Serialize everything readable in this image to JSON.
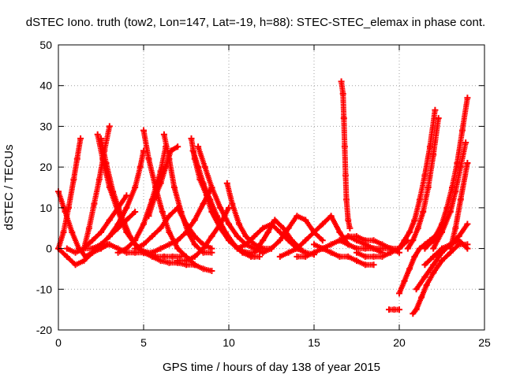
{
  "chart_data": {
    "type": "scatter",
    "title": "dSTEC Iono. truth (tow2, Lon=147, Lat=-19, h=88): STEC-STEC_elemax in phase cont.",
    "xlabel": "GPS time / hours of day 138 of year 2015",
    "ylabel": "dSTEC  / TECUs",
    "xlim": [
      0,
      25
    ],
    "ylim": [
      -20,
      50
    ],
    "xticks": [
      0,
      5,
      10,
      15,
      20,
      25
    ],
    "yticks": [
      -20,
      -10,
      0,
      10,
      20,
      30,
      40,
      50
    ],
    "grid": true,
    "marker": "+",
    "color": "#ff0000",
    "series": [
      {
        "x": [
          0.0,
          0.4,
          0.8,
          1.2,
          1.6,
          2.0,
          2.5,
          2.9
        ],
        "y": [
          14.0,
          9.0,
          4.0,
          0.0,
          -2.0,
          -1.0,
          0.0,
          1.0
        ]
      },
      {
        "x": [
          0.0,
          0.3,
          0.6,
          0.9,
          1.1,
          1.3
        ],
        "y": [
          0.0,
          4.0,
          10.0,
          17.0,
          22.0,
          27.0
        ]
      },
      {
        "x": [
          0.0,
          0.5,
          1.0,
          1.5,
          2.0,
          2.5,
          3.0,
          3.5,
          4.0,
          4.5
        ],
        "y": [
          0.0,
          -2.0,
          -4.0,
          -3.0,
          -1.0,
          1.0,
          3.0,
          5.0,
          7.0,
          9.0
        ]
      },
      {
        "x": [
          0.5,
          1.0,
          1.5,
          2.0,
          2.5,
          3.0,
          3.5,
          4.0
        ],
        "y": [
          0.0,
          -1.0,
          0.0,
          2.0,
          4.0,
          7.0,
          10.0,
          13.0
        ]
      },
      {
        "x": [
          2.3,
          2.6,
          3.0,
          3.5,
          4.0,
          4.5,
          5.0,
          5.5,
          6.0,
          6.5,
          7.0,
          7.5,
          8.0
        ],
        "y": [
          28.0,
          22.0,
          15.0,
          9.0,
          4.0,
          1.0,
          -1.0,
          -2.0,
          -3.0,
          -3.5,
          -3.5,
          -4.0,
          -4.0
        ]
      },
      {
        "x": [
          2.5,
          2.8,
          3.2,
          3.7,
          4.2,
          4.7,
          5.2,
          5.7,
          6.2,
          6.7,
          7.2
        ],
        "y": [
          27.0,
          21.0,
          14.0,
          8.0,
          3.0,
          0.0,
          -1.0,
          -2.0,
          -2.0,
          -2.0,
          -2.0
        ]
      },
      {
        "x": [
          1.5,
          1.8,
          2.1,
          2.4,
          2.7,
          3.0
        ],
        "y": [
          0.0,
          5.0,
          11.0,
          17.0,
          24.0,
          30.0
        ]
      },
      {
        "x": [
          1.5,
          2.0,
          2.5,
          3.0,
          3.5,
          4.0,
          4.5,
          5.0
        ],
        "y": [
          0.0,
          0.0,
          1.0,
          1.0,
          0.0,
          -1.0,
          -1.0,
          -1.0
        ]
      },
      {
        "x": [
          3.0,
          3.5,
          4.0,
          4.5,
          4.8,
          5.0
        ],
        "y": [
          3.0,
          6.0,
          10.0,
          15.0,
          20.0,
          24.0
        ]
      },
      {
        "x": [
          5.0,
          5.3,
          5.7,
          6.1,
          6.5,
          7.0,
          7.5,
          8.0,
          8.5,
          9.0
        ],
        "y": [
          29.0,
          22.0,
          15.0,
          9.0,
          4.0,
          0.0,
          -2.0,
          -4.0,
          -5.0,
          -5.5
        ]
      },
      {
        "x": [
          3.5,
          4.0,
          4.5,
          5.0,
          5.5,
          6.0,
          6.3
        ],
        "y": [
          -1.0,
          0.0,
          2.0,
          6.0,
          12.0,
          19.0,
          25.0
        ]
      },
      {
        "x": [
          4.5,
          5.0,
          5.5,
          6.0,
          6.5,
          7.0,
          7.5,
          8.0,
          8.5,
          9.0
        ],
        "y": [
          0.0,
          1.0,
          3.0,
          5.0,
          8.0,
          10.0,
          6.0,
          3.0,
          1.0,
          0.0
        ]
      },
      {
        "x": [
          6.2,
          6.5,
          6.8,
          7.2,
          7.6,
          8.0,
          8.5,
          9.0
        ],
        "y": [
          28.0,
          22.0,
          15.0,
          9.0,
          4.0,
          1.0,
          -1.0,
          -1.0
        ]
      },
      {
        "x": [
          5.3,
          5.6,
          6.0,
          6.3,
          6.6,
          7.0
        ],
        "y": [
          8.0,
          12.0,
          16.0,
          20.0,
          24.0,
          25.0
        ]
      },
      {
        "x": [
          5.0,
          5.5,
          6.0,
          6.5,
          7.0,
          7.5,
          8.0,
          8.5,
          9.0
        ],
        "y": [
          -1.0,
          -1.0,
          0.0,
          1.0,
          2.0,
          4.0,
          7.0,
          11.0,
          15.0
        ]
      },
      {
        "x": [
          7.8,
          8.0,
          8.3,
          8.7,
          9.0,
          9.5,
          10.0,
          10.5,
          11.0,
          11.5
        ],
        "y": [
          27.0,
          22.0,
          17.0,
          13.0,
          9.0,
          5.0,
          2.0,
          0.0,
          -1.0,
          -2.0
        ]
      },
      {
        "x": [
          7.9,
          8.2,
          8.5,
          8.9,
          9.3,
          9.8,
          10.3,
          10.8,
          11.3,
          11.8
        ],
        "y": [
          24.0,
          20.0,
          16.0,
          12.0,
          8.0,
          4.0,
          1.0,
          -1.0,
          -2.0,
          -2.0
        ]
      },
      {
        "x": [
          8.2,
          8.6,
          9.0,
          9.5,
          10.0,
          10.5,
          11.0,
          11.5,
          12.0
        ],
        "y": [
          25.0,
          20.0,
          15.0,
          10.0,
          6.0,
          3.0,
          1.0,
          0.0,
          -1.0
        ]
      },
      {
        "x": [
          7.0,
          7.5,
          8.0,
          8.5,
          9.0,
          9.5,
          10.0
        ],
        "y": [
          -3.0,
          -3.0,
          -2.0,
          0.0,
          3.0,
          6.0,
          10.0
        ]
      },
      {
        "x": [
          9.9,
          10.2,
          10.6,
          11.0,
          11.5,
          12.0,
          12.5
        ],
        "y": [
          16.0,
          11.0,
          6.0,
          3.0,
          1.0,
          0.0,
          0.0
        ]
      },
      {
        "x": [
          10.5,
          11.0,
          11.5,
          12.0,
          12.5,
          13.0,
          13.5,
          14.0,
          14.5,
          15.0
        ],
        "y": [
          0.0,
          1.0,
          3.0,
          5.0,
          6.0,
          4.0,
          2.0,
          0.0,
          -1.0,
          -1.5
        ]
      },
      {
        "x": [
          11.0,
          11.5,
          12.0,
          12.3,
          12.7,
          13.2,
          13.7,
          14.2
        ],
        "y": [
          -1.0,
          -1.0,
          2.0,
          4.0,
          7.0,
          5.0,
          2.0,
          0.0
        ]
      },
      {
        "x": [
          12.0,
          12.5,
          13.0,
          13.5,
          14.0,
          14.5,
          15.0,
          15.5
        ],
        "y": [
          -1.0,
          0.0,
          2.0,
          5.0,
          8.0,
          7.0,
          4.0,
          2.0
        ]
      },
      {
        "x": [
          13.0,
          13.5,
          14.0,
          14.5,
          15.0,
          15.5,
          16.0,
          16.5,
          17.0
        ],
        "y": [
          -2.0,
          -1.0,
          0.0,
          2.0,
          4.0,
          6.0,
          8.0,
          4.0,
          1.0
        ]
      },
      {
        "x": [
          14.0,
          14.5,
          15.0,
          15.5,
          16.0,
          16.5,
          17.0,
          17.5,
          18.0,
          18.5,
          19.0
        ],
        "y": [
          -2.0,
          -2.0,
          -1.0,
          0.0,
          1.0,
          2.0,
          3.0,
          2.0,
          1.0,
          0.0,
          -1.0
        ]
      },
      {
        "x": [
          15.0,
          15.5,
          16.0,
          16.5,
          17.0,
          17.5,
          18.0,
          18.5
        ],
        "y": [
          1.0,
          0.0,
          -1.0,
          -2.0,
          -2.0,
          -3.0,
          -4.0,
          -4.0
        ]
      },
      {
        "x": [
          16.6,
          16.7,
          16.75,
          16.8,
          16.85,
          16.9,
          17.0,
          17.1
        ],
        "y": [
          41.0,
          38.0,
          32.0,
          25.0,
          18.0,
          12.0,
          7.0,
          5.0
        ]
      },
      {
        "x": [
          16.5,
          17.0,
          17.5,
          18.0,
          18.5,
          19.0,
          19.5,
          20.0
        ],
        "y": [
          2.0,
          1.0,
          0.0,
          0.0,
          0.0,
          0.0,
          0.0,
          0.0
        ]
      },
      {
        "x": [
          17.0,
          17.5,
          18.0,
          18.5,
          19.0,
          19.5,
          20.0
        ],
        "y": [
          3.0,
          3.0,
          2.0,
          2.0,
          1.0,
          0.0,
          -1.0
        ]
      },
      {
        "x": [
          17.5,
          18.0,
          18.5,
          19.0,
          19.5,
          20.0,
          20.5
        ],
        "y": [
          -1.0,
          -2.0,
          -2.0,
          -2.0,
          -1.0,
          0.0,
          2.0
        ]
      },
      {
        "x": [
          19.4,
          19.7,
          20.0
        ],
        "y": [
          -15.0,
          -15.0,
          -15.0
        ]
      },
      {
        "x": [
          20.0,
          20.3,
          20.6,
          20.9,
          21.2,
          21.5,
          21.8,
          22.1,
          22.4
        ],
        "y": [
          -11.0,
          -8.0,
          -5.0,
          -2.0,
          0.0,
          1.0,
          2.0,
          3.0,
          4.0
        ]
      },
      {
        "x": [
          20.0,
          20.3,
          20.6,
          20.9,
          21.2,
          21.5,
          21.8,
          22.1
        ],
        "y": [
          0.0,
          2.0,
          4.0,
          7.0,
          12.0,
          18.0,
          25.0,
          34.0
        ]
      },
      {
        "x": [
          20.5,
          20.8,
          21.1,
          21.4,
          21.7,
          22.0,
          22.3
        ],
        "y": [
          0.0,
          2.0,
          5.0,
          9.0,
          15.0,
          23.0,
          32.0
        ]
      },
      {
        "x": [
          20.8,
          21.0,
          21.3,
          21.6,
          22.0,
          22.5,
          23.0,
          23.5,
          24.0
        ],
        "y": [
          -16.0,
          -15.0,
          -12.0,
          -9.0,
          -6.0,
          -3.0,
          -1.0,
          1.0,
          1.0
        ]
      },
      {
        "x": [
          21.0,
          21.5,
          22.0,
          22.5,
          23.0,
          23.5,
          24.0
        ],
        "y": [
          -10.0,
          -7.0,
          -4.0,
          -1.0,
          1.0,
          2.0,
          0.0
        ]
      },
      {
        "x": [
          21.5,
          22.0,
          22.5,
          22.8,
          23.1,
          23.4,
          23.7,
          24.0
        ],
        "y": [
          0.0,
          2.0,
          6.0,
          10.0,
          15.0,
          21.0,
          29.0,
          37.0
        ]
      },
      {
        "x": [
          22.0,
          22.5,
          23.0,
          23.3,
          23.6,
          23.9
        ],
        "y": [
          0.0,
          4.0,
          9.0,
          14.0,
          20.0,
          26.0
        ]
      },
      {
        "x": [
          21.5,
          22.0,
          22.5,
          23.0,
          23.5,
          24.0
        ],
        "y": [
          -4.0,
          -2.0,
          0.0,
          1.0,
          3.0,
          6.0
        ]
      },
      {
        "x": [
          23.0,
          23.3,
          23.6,
          24.0
        ],
        "y": [
          0.0,
          5.0,
          12.0,
          21.0
        ]
      }
    ]
  }
}
